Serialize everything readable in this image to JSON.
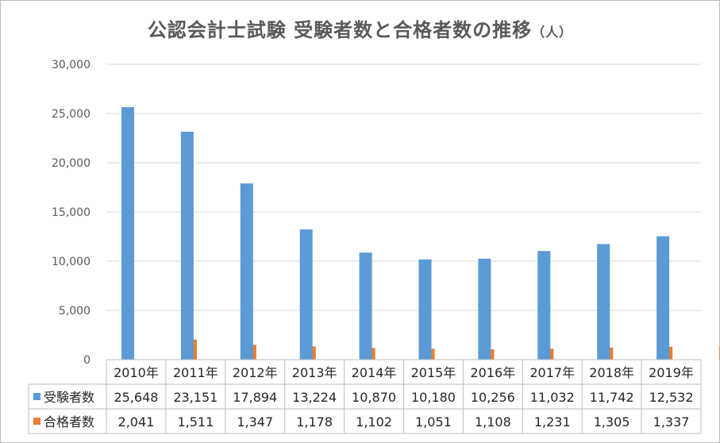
{
  "chart_data": {
    "type": "bar",
    "title": "公認会計士試験 受験者数と合格者数の推移",
    "title_unit": "（人）",
    "categories": [
      "2010年",
      "2011年",
      "2012年",
      "2013年",
      "2014年",
      "2015年",
      "2016年",
      "2017年",
      "2018年",
      "2019年"
    ],
    "series": [
      {
        "name": "受験者数",
        "color": "#5b9bd5",
        "values": [
          25648,
          23151,
          17894,
          13224,
          10870,
          10180,
          10256,
          11032,
          11742,
          12532
        ],
        "labels": [
          "25,648",
          "23,151",
          "17,894",
          "13,224",
          "10,870",
          "10,180",
          "10,256",
          "11,032",
          "11,742",
          "12,532"
        ]
      },
      {
        "name": "合格者数",
        "color": "#ed7d31",
        "values": [
          2041,
          1511,
          1347,
          1178,
          1102,
          1051,
          1108,
          1231,
          1305,
          1337
        ],
        "labels": [
          "2,041",
          "1,511",
          "1,347",
          "1,178",
          "1,102",
          "1,051",
          "1,108",
          "1,231",
          "1,305",
          "1,337"
        ]
      }
    ],
    "ylim": [
      0,
      30000
    ],
    "yticks": [
      0,
      5000,
      10000,
      15000,
      20000,
      25000,
      30000
    ],
    "ytick_labels": [
      "0",
      "5,000",
      "10,000",
      "15,000",
      "20,000",
      "25,000",
      "30,000"
    ],
    "grid": true,
    "legend": "data-table"
  }
}
